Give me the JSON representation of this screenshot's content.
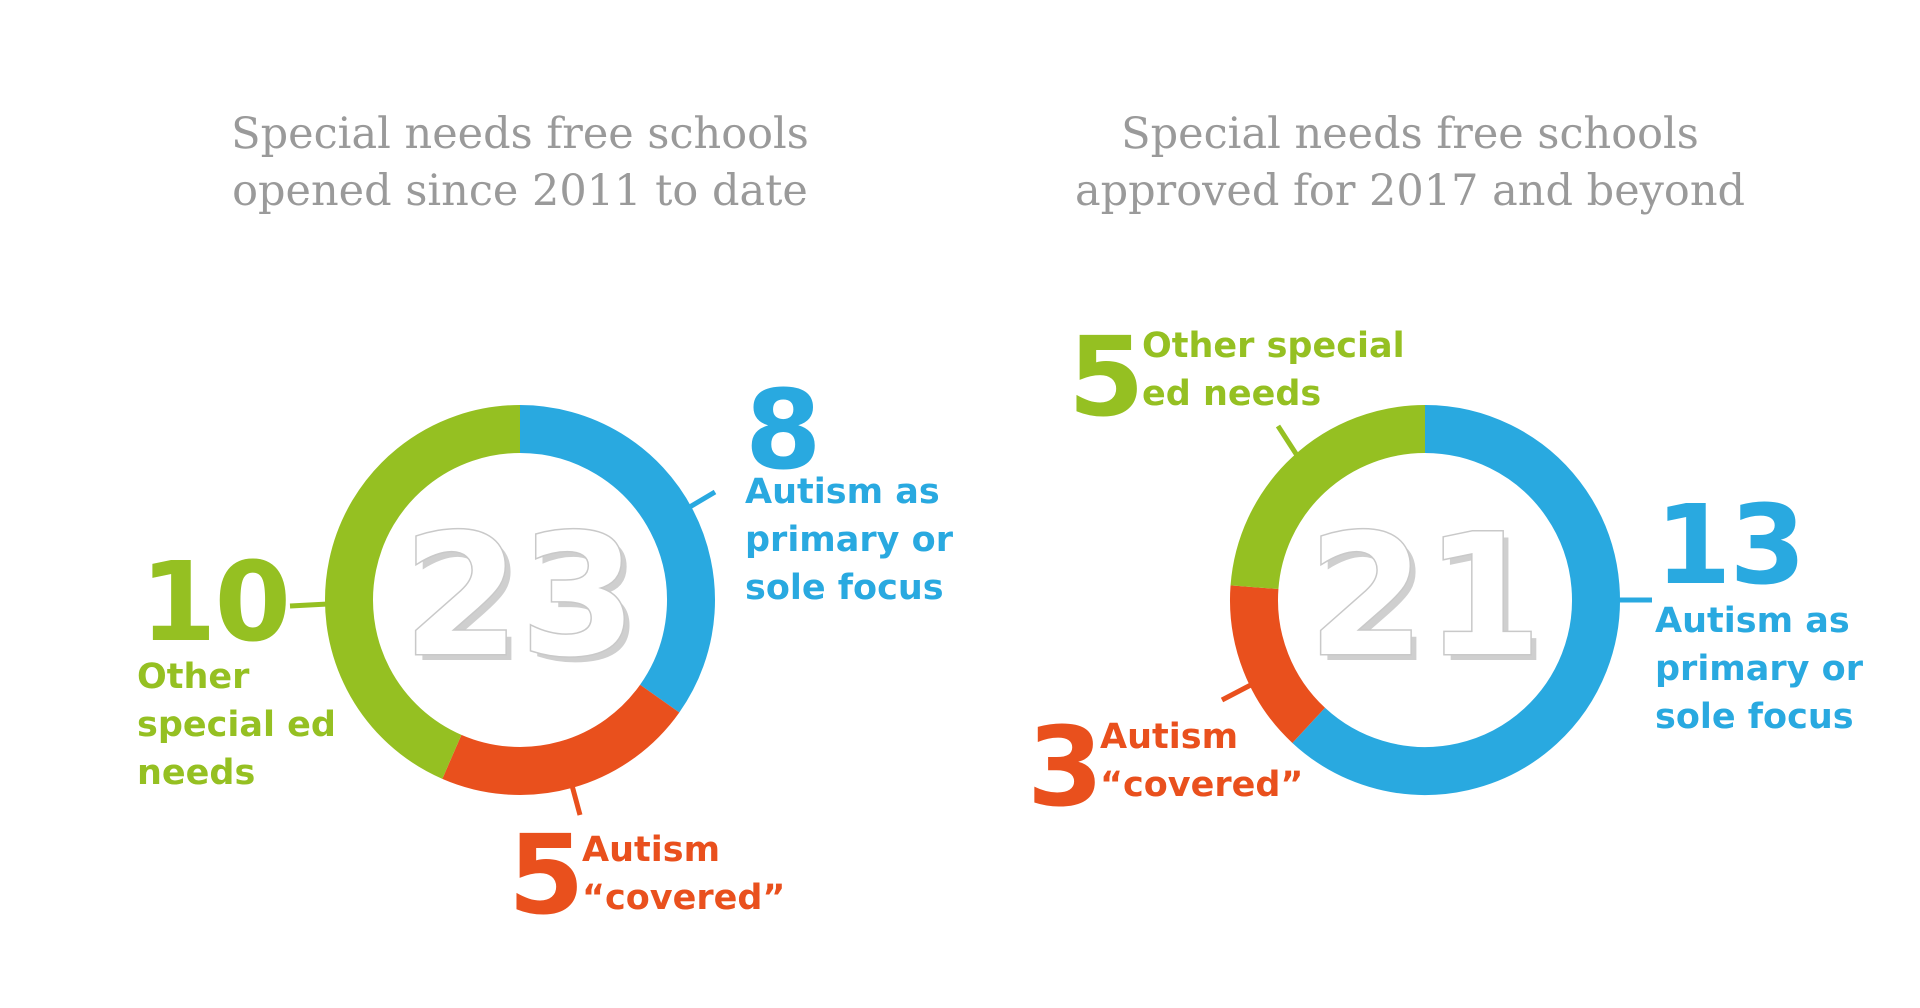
{
  "colors": {
    "autism_primary": "#29a9e0",
    "autism_covered": "#e9501d",
    "other_sen": "#95c022",
    "title": "#9a9a9a"
  },
  "chart_data": [
    {
      "type": "pie",
      "title_line1": "Special needs free schools",
      "title_line2": "opened since 2011 to date",
      "total": "23",
      "slices": [
        {
          "key": "autism_primary",
          "value": 8,
          "value_text": "8",
          "label_lines": [
            "Autism as",
            "primary or",
            "sole focus"
          ]
        },
        {
          "key": "autism_covered",
          "value": 5,
          "value_text": "5",
          "label_lines": [
            "Autism",
            "“covered”"
          ]
        },
        {
          "key": "other_sen",
          "value": 10,
          "value_text": "10",
          "label_lines": [
            "Other",
            "special ed",
            "needs"
          ]
        }
      ]
    },
    {
      "type": "pie",
      "title_line1": "Special needs free schools",
      "title_line2": "approved for 2017 and beyond",
      "total": "21",
      "slices": [
        {
          "key": "autism_primary",
          "value": 13,
          "value_text": "13",
          "label_lines": [
            "Autism as",
            "primary or",
            "sole focus"
          ]
        },
        {
          "key": "autism_covered",
          "value": 3,
          "value_text": "3",
          "label_lines": [
            "Autism",
            "“covered”"
          ]
        },
        {
          "key": "other_sen",
          "value": 5,
          "value_text": "5",
          "label_lines": [
            "Other special",
            "ed needs"
          ]
        }
      ]
    }
  ]
}
